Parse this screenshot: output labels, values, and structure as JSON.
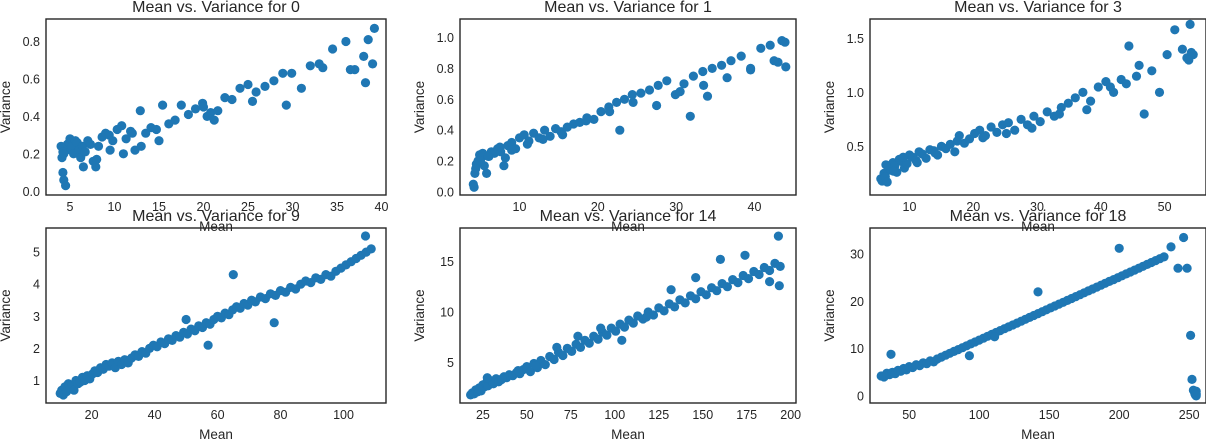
{
  "chart_data": [
    {
      "type": "scatter",
      "title": "Mean vs. Variance for 0",
      "xlabel": "Mean",
      "ylabel": "Variance",
      "xlim": [
        2.3,
        40.5
      ],
      "ylim": [
        -0.02,
        0.92
      ],
      "xticks": [
        5,
        10,
        15,
        20,
        25,
        30,
        35,
        40
      ],
      "yticks": [
        0.0,
        0.2,
        0.4,
        0.6,
        0.8
      ],
      "ytick_decimals": 1,
      "color": "#1f77b4",
      "grid": false,
      "x": [
        4.0,
        4.2,
        4.3,
        4.5,
        4.6,
        4.7,
        4.9,
        5.0,
        5.2,
        5.4,
        5.6,
        5.8,
        6.0,
        6.2,
        6.4,
        6.7,
        7.0,
        7.3,
        7.6,
        7.9,
        8.2,
        8.6,
        9.0,
        9.4,
        9.8,
        10.3,
        10.8,
        11.3,
        11.8,
        12.3,
        12.9,
        13.5,
        14.1,
        14.7,
        15.4,
        16.1,
        16.8,
        17.5,
        18.3,
        19.1,
        19.9,
        20.4,
        20.8,
        21.2,
        21.6,
        22.4,
        23.2,
        24.1,
        25.0,
        25.9,
        26.9,
        27.9,
        28.9,
        29.9,
        31.0,
        32.0,
        33.0,
        34.5,
        36.0,
        37.0,
        38.0,
        38.5,
        39.0,
        39.2,
        4.1,
        4.2,
        4.3,
        6.5,
        8.0,
        12.0,
        15.0,
        20.0,
        25.5,
        29.3,
        33.4,
        36.5,
        38.2,
        9.5,
        11.0,
        13.0
      ],
      "y": [
        0.24,
        0.1,
        0.06,
        0.03,
        0.22,
        0.25,
        0.26,
        0.28,
        0.24,
        0.2,
        0.27,
        0.26,
        0.22,
        0.18,
        0.24,
        0.21,
        0.27,
        0.25,
        0.16,
        0.13,
        0.24,
        0.29,
        0.31,
        0.3,
        0.27,
        0.33,
        0.35,
        0.28,
        0.32,
        0.22,
        0.43,
        0.31,
        0.34,
        0.33,
        0.46,
        0.36,
        0.38,
        0.46,
        0.41,
        0.44,
        0.47,
        0.4,
        0.42,
        0.38,
        0.43,
        0.5,
        0.49,
        0.55,
        0.57,
        0.53,
        0.56,
        0.59,
        0.63,
        0.63,
        0.55,
        0.67,
        0.68,
        0.76,
        0.8,
        0.65,
        0.72,
        0.81,
        0.68,
        0.87,
        0.18,
        0.21,
        0.2,
        0.13,
        0.17,
        0.31,
        0.27,
        0.45,
        0.48,
        0.46,
        0.66,
        0.65,
        0.58,
        0.22,
        0.2,
        0.24
      ]
    },
    {
      "type": "scatter",
      "title": "Mean vs. Variance for 1",
      "xlabel": "Mean",
      "ylabel": "Variance",
      "xlim": [
        2.4,
        45.3
      ],
      "ylim": [
        -0.02,
        1.12
      ],
      "xticks": [
        10,
        20,
        30,
        40
      ],
      "yticks": [
        0.0,
        0.2,
        0.4,
        0.6,
        0.8,
        1.0
      ],
      "ytick_decimals": 1,
      "color": "#1f77b4",
      "grid": false,
      "x": [
        4.1,
        4.2,
        4.3,
        4.5,
        4.7,
        4.9,
        5.1,
        5.3,
        5.5,
        5.8,
        6.1,
        6.4,
        6.8,
        7.2,
        7.6,
        8.0,
        8.5,
        9.0,
        9.5,
        10.0,
        10.6,
        11.2,
        11.8,
        12.5,
        13.2,
        13.9,
        14.6,
        15.3,
        16.1,
        16.9,
        17.7,
        18.6,
        19.5,
        20.4,
        21.4,
        22.4,
        23.4,
        24.4,
        25.5,
        26.6,
        27.7,
        28.8,
        29.9,
        31.0,
        32.2,
        33.4,
        34.6,
        35.8,
        37.0,
        38.3,
        39.5,
        40.8,
        42.0,
        43.0,
        43.5,
        44.0,
        5.0,
        6.0,
        7.5,
        9.0,
        11.0,
        13.0,
        15.5,
        18.5,
        21.5,
        24.5,
        27.5,
        30.5,
        33.5,
        36.5,
        39.5,
        42.5,
        4.4,
        8.2,
        22.8,
        31.8,
        34.0,
        43.9
      ],
      "y": [
        0.05,
        0.03,
        0.12,
        0.18,
        0.2,
        0.24,
        0.22,
        0.25,
        0.17,
        0.12,
        0.23,
        0.26,
        0.25,
        0.28,
        0.26,
        0.17,
        0.3,
        0.32,
        0.28,
        0.35,
        0.37,
        0.33,
        0.38,
        0.35,
        0.4,
        0.36,
        0.41,
        0.39,
        0.42,
        0.44,
        0.45,
        0.48,
        0.47,
        0.52,
        0.55,
        0.58,
        0.6,
        0.63,
        0.64,
        0.66,
        0.69,
        0.72,
        0.63,
        0.7,
        0.75,
        0.78,
        0.8,
        0.82,
        0.85,
        0.88,
        0.8,
        0.93,
        0.95,
        0.84,
        0.98,
        0.81,
        0.2,
        0.23,
        0.29,
        0.27,
        0.31,
        0.34,
        0.37,
        0.46,
        0.52,
        0.58,
        0.56,
        0.65,
        0.69,
        0.74,
        0.79,
        0.85,
        0.15,
        0.22,
        0.4,
        0.49,
        0.62,
        0.97
      ]
    },
    {
      "type": "scatter",
      "title": "Mean vs. Variance for 3",
      "xlabel": "Mean",
      "ylabel": "Variance",
      "xlim": [
        3.8,
        56.5
      ],
      "ylim": [
        0.05,
        1.68
      ],
      "xticks": [
        10,
        20,
        30,
        40,
        50
      ],
      "yticks": [
        0.5,
        1.0,
        1.5
      ],
      "ytick_decimals": 1,
      "color": "#1f77b4",
      "grid": false,
      "x": [
        5.5,
        5.7,
        6.0,
        6.2,
        6.5,
        6.8,
        7.1,
        7.4,
        7.7,
        8.0,
        8.4,
        8.8,
        9.2,
        9.6,
        10.0,
        10.5,
        11.0,
        11.5,
        12.0,
        12.6,
        13.2,
        13.8,
        14.4,
        15.0,
        15.7,
        16.4,
        17.1,
        17.8,
        18.6,
        19.4,
        20.2,
        21.0,
        21.9,
        22.8,
        23.7,
        24.6,
        25.5,
        26.5,
        27.5,
        28.5,
        29.5,
        30.5,
        31.6,
        32.7,
        33.8,
        34.9,
        36.0,
        37.2,
        38.4,
        39.6,
        40.8,
        42.0,
        43.2,
        44.4,
        45.6,
        46.8,
        48.0,
        49.2,
        50.4,
        51.6,
        52.8,
        53.5,
        54.0,
        54.5,
        6.3,
        7.5,
        9.0,
        11.2,
        14.0,
        17.5,
        21.5,
        25.2,
        29.2,
        33.5,
        37.8,
        41.5,
        44.0,
        46.0,
        54.2,
        53.8
      ],
      "y": [
        0.2,
        0.18,
        0.25,
        0.22,
        0.17,
        0.3,
        0.28,
        0.35,
        0.32,
        0.26,
        0.38,
        0.36,
        0.3,
        0.34,
        0.42,
        0.4,
        0.37,
        0.45,
        0.43,
        0.39,
        0.47,
        0.46,
        0.42,
        0.5,
        0.48,
        0.52,
        0.45,
        0.6,
        0.53,
        0.57,
        0.62,
        0.65,
        0.6,
        0.68,
        0.63,
        0.7,
        0.72,
        0.65,
        0.75,
        0.7,
        0.78,
        0.73,
        0.82,
        0.78,
        0.86,
        0.9,
        0.95,
        1.0,
        0.92,
        1.05,
        1.1,
        1.0,
        1.12,
        1.43,
        1.15,
        0.8,
        1.2,
        1.0,
        1.35,
        1.58,
        1.4,
        1.32,
        1.63,
        1.35,
        0.33,
        0.27,
        0.4,
        0.35,
        0.44,
        0.55,
        0.58,
        0.62,
        0.67,
        0.8,
        0.84,
        1.05,
        1.08,
        1.25,
        1.37,
        1.3
      ]
    },
    {
      "type": "scatter",
      "title": "Mean vs. Variance for 9",
      "xlabel": "Mean",
      "ylabel": "Variance",
      "xlim": [
        5.5,
        113.5
      ],
      "ylim": [
        0.3,
        5.75
      ],
      "xticks": [
        20,
        40,
        60,
        80,
        100
      ],
      "yticks": [
        1,
        2,
        3,
        4,
        5
      ],
      "ytick_decimals": 0,
      "color": "#1f77b4",
      "grid": false,
      "x": [
        10.0,
        10.5,
        11.0,
        11.5,
        12.0,
        12.6,
        13.2,
        13.8,
        14.4,
        15.0,
        15.7,
        16.4,
        17.1,
        17.8,
        18.6,
        19.4,
        20.2,
        21.0,
        21.9,
        22.8,
        23.7,
        24.6,
        25.5,
        26.5,
        27.5,
        28.5,
        29.5,
        30.5,
        31.6,
        32.7,
        33.8,
        34.9,
        36.0,
        37.2,
        38.4,
        39.6,
        40.8,
        42.0,
        43.2,
        44.4,
        45.6,
        46.8,
        48.0,
        49.2,
        50.4,
        51.6,
        52.8,
        54.0,
        55.2,
        56.4,
        57.6,
        58.8,
        60.0,
        61.2,
        62.4,
        63.6,
        64.8,
        66.0,
        67.2,
        68.4,
        69.6,
        70.8,
        72.0,
        73.6,
        75.2,
        76.8,
        78.4,
        80.0,
        81.6,
        83.2,
        84.8,
        86.4,
        88.0,
        89.6,
        91.2,
        92.8,
        94.4,
        96.0,
        97.6,
        99.2,
        100.8,
        102.4,
        104.0,
        105.6,
        107.2,
        108.8,
        78.0,
        65.0,
        50.0,
        57.0,
        107.0
      ],
      "y": [
        0.6,
        0.7,
        0.55,
        0.8,
        0.65,
        0.9,
        0.75,
        0.85,
        0.7,
        1.0,
        0.9,
        0.95,
        1.1,
        1.0,
        1.15,
        1.05,
        1.2,
        1.3,
        1.25,
        1.4,
        1.35,
        1.5,
        1.45,
        1.55,
        1.4,
        1.6,
        1.5,
        1.65,
        1.55,
        1.7,
        1.8,
        1.75,
        1.9,
        1.85,
        2.0,
        2.1,
        2.05,
        2.2,
        2.15,
        2.3,
        2.25,
        2.4,
        2.35,
        2.5,
        2.45,
        2.6,
        2.55,
        2.7,
        2.65,
        2.8,
        2.75,
        2.9,
        3.0,
        2.95,
        3.1,
        3.05,
        3.2,
        3.3,
        3.25,
        3.4,
        3.35,
        3.5,
        3.45,
        3.6,
        3.55,
        3.7,
        3.65,
        3.8,
        3.75,
        3.9,
        3.85,
        4.0,
        4.1,
        4.05,
        4.2,
        4.15,
        4.3,
        4.25,
        4.4,
        4.5,
        4.6,
        4.7,
        4.8,
        4.9,
        5.0,
        5.1,
        2.8,
        4.3,
        2.9,
        2.1,
        5.5
      ]
    },
    {
      "type": "scatter",
      "title": "Mean vs. Variance for 14",
      "xlabel": "Mean",
      "ylabel": "Variance",
      "xlim": [
        12.0,
        203.0
      ],
      "ylim": [
        1.0,
        18.3
      ],
      "xticks": [
        25,
        50,
        75,
        100,
        125,
        150,
        175,
        200
      ],
      "yticks": [
        5,
        10,
        15
      ],
      "ytick_decimals": 0,
      "color": "#1f77b4",
      "grid": false,
      "x": [
        18.0,
        19.0,
        20.0,
        21.0,
        22.0,
        23.0,
        24.0,
        25.0,
        26.0,
        27.0,
        28.0,
        29.5,
        31.0,
        32.5,
        34.0,
        35.5,
        37.0,
        38.5,
        40.0,
        42.0,
        44.0,
        46.0,
        48.0,
        50.0,
        52.0,
        54.0,
        56.0,
        58.0,
        60.5,
        63.0,
        65.5,
        68.0,
        70.5,
        73.0,
        75.5,
        78.0,
        80.5,
        83.0,
        85.5,
        88.0,
        90.5,
        93.0,
        95.5,
        98.0,
        100.5,
        103.0,
        105.5,
        108.0,
        110.5,
        113.0,
        116.0,
        119.0,
        122.0,
        125.0,
        128.0,
        131.0,
        134.0,
        137.0,
        140.0,
        143.0,
        146.0,
        149.0,
        152.0,
        155.0,
        158.0,
        161.0,
        164.0,
        167.0,
        170.0,
        173.0,
        176.0,
        179.0,
        182.0,
        185.0,
        188.0,
        191.0,
        193.0,
        194.0,
        22.5,
        27.5,
        36.0,
        45.0,
        55.0,
        67.0,
        79.0,
        92.0,
        104.0,
        118.0,
        132.0,
        146.0,
        160.0,
        174.0,
        188.0,
        193.5
      ],
      "y": [
        1.8,
        2.0,
        1.9,
        2.3,
        2.1,
        2.5,
        2.2,
        2.8,
        2.6,
        3.0,
        2.7,
        3.2,
        2.9,
        3.4,
        3.1,
        3.3,
        3.6,
        3.5,
        3.8,
        3.7,
        4.0,
        3.9,
        4.3,
        4.6,
        4.1,
        4.9,
        4.5,
        5.2,
        4.8,
        5.6,
        5.3,
        6.0,
        5.7,
        6.4,
        6.1,
        6.8,
        6.5,
        7.2,
        6.9,
        7.6,
        7.3,
        8.0,
        7.7,
        8.4,
        8.1,
        8.8,
        8.5,
        9.2,
        8.9,
        9.6,
        9.3,
        10.0,
        9.7,
        10.4,
        10.1,
        10.8,
        10.5,
        11.2,
        10.9,
        11.6,
        11.3,
        12.0,
        11.7,
        12.4,
        12.1,
        12.8,
        12.5,
        13.2,
        12.9,
        13.6,
        13.3,
        14.0,
        13.7,
        14.4,
        14.1,
        14.8,
        17.5,
        14.5,
        2.4,
        3.5,
        3.4,
        4.2,
        4.7,
        6.5,
        7.6,
        8.4,
        7.2,
        9.5,
        12.2,
        13.4,
        15.2,
        15.6,
        13.0,
        12.6
      ]
    },
    {
      "type": "scatter",
      "title": "Mean vs. Variance for 18",
      "xlabel": "Mean",
      "ylabel": "Variance",
      "xlim": [
        22.0,
        262.0
      ],
      "ylim": [
        -1.5,
        35.5
      ],
      "xticks": [
        50,
        100,
        150,
        200,
        250
      ],
      "yticks": [
        0,
        10,
        20,
        30
      ],
      "ytick_decimals": 0,
      "color": "#1f77b4",
      "grid": false,
      "x": [
        30.0,
        32.0,
        34.0,
        36.0,
        38.0,
        40.0,
        42.0,
        44.0,
        46.0,
        48.0,
        50.0,
        52.5,
        55.0,
        57.5,
        60.0,
        62.5,
        65.0,
        67.5,
        70.0,
        73.0,
        76.0,
        79.0,
        82.0,
        85.0,
        88.0,
        91.0,
        94.0,
        97.0,
        100.0,
        103.0,
        106.0,
        109.0,
        112.0,
        115.0,
        118.0,
        121.0,
        124.0,
        127.0,
        130.0,
        133.0,
        136.0,
        139.0,
        142.0,
        145.0,
        148.0,
        151.0,
        154.0,
        157.0,
        160.0,
        163.0,
        166.0,
        169.0,
        172.0,
        175.0,
        178.0,
        181.0,
        184.0,
        187.0,
        190.0,
        193.0,
        196.0,
        199.0,
        202.0,
        205.0,
        208.0,
        211.0,
        214.0,
        217.0,
        220.0,
        223.0,
        226.0,
        229.0,
        232.0,
        237.0,
        242.0,
        246.0,
        248.5,
        251.0,
        252.0,
        253.0,
        254.0,
        254.5,
        255.0,
        255.0,
        255.0,
        255.0,
        93.0,
        111.0,
        142.0,
        200.0,
        37.0
      ],
      "y": [
        4.2,
        4.0,
        4.8,
        4.5,
        5.0,
        4.7,
        5.4,
        5.2,
        5.8,
        5.5,
        6.2,
        6.0,
        6.6,
        6.4,
        7.0,
        6.8,
        7.4,
        7.2,
        7.8,
        8.2,
        8.6,
        9.0,
        9.4,
        9.8,
        10.2,
        10.6,
        11.0,
        11.4,
        11.8,
        12.2,
        12.6,
        13.0,
        13.4,
        13.8,
        14.2,
        14.6,
        15.0,
        15.4,
        15.8,
        16.2,
        16.6,
        17.0,
        17.4,
        17.8,
        18.2,
        18.6,
        19.0,
        19.4,
        19.8,
        20.2,
        20.6,
        21.0,
        21.4,
        21.8,
        22.2,
        22.6,
        23.0,
        23.4,
        23.8,
        24.2,
        24.6,
        25.0,
        25.4,
        25.8,
        26.2,
        26.6,
        27.0,
        27.4,
        27.8,
        28.2,
        28.6,
        29.0,
        29.4,
        31.5,
        27.0,
        33.5,
        27.0,
        12.8,
        3.5,
        1.2,
        0.5,
        0.2,
        0.0,
        0.5,
        1.0,
        0.3,
        8.5,
        12.5,
        22.0,
        31.2,
        8.8
      ]
    }
  ]
}
